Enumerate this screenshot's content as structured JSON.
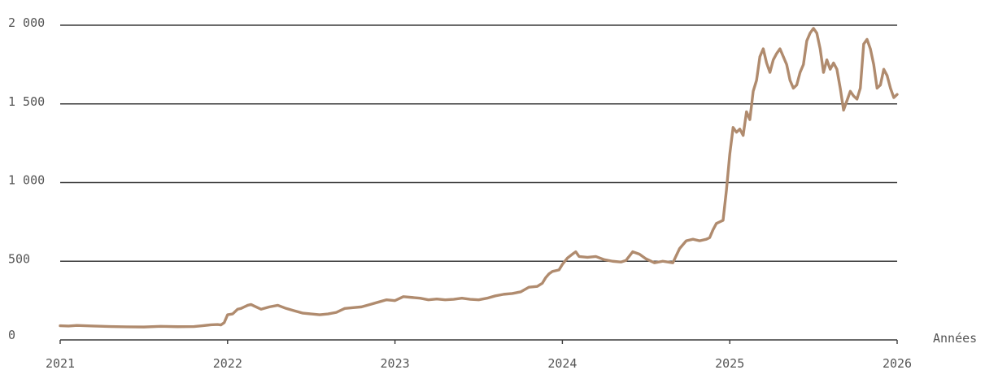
{
  "chart_data": {
    "type": "line",
    "title": "",
    "xlabel": "Années",
    "ylabel": "",
    "xlim": [
      2021,
      2026
    ],
    "ylim": [
      0,
      2000
    ],
    "grid": true,
    "x_ticks": [
      2021,
      2022,
      2023,
      2024,
      2025,
      2026
    ],
    "x_tick_labels": [
      "2021",
      "2022",
      "2023",
      "2024",
      "2025",
      "2026"
    ],
    "y_ticks": [
      0,
      500,
      1000,
      1500,
      2000
    ],
    "y_tick_labels": [
      "0",
      "500",
      "1 000",
      "1 500",
      "2 000"
    ],
    "colors": {
      "series": "#b08b6e",
      "grid": "#3a3a3a",
      "text": "#555555"
    },
    "series": [
      {
        "name": "",
        "x": [
          2021.0,
          2021.05,
          2021.1,
          2021.2,
          2021.3,
          2021.4,
          2021.5,
          2021.6,
          2021.7,
          2021.8,
          2021.85,
          2021.9,
          2021.94,
          2021.96,
          2021.98,
          2022.0,
          2022.03,
          2022.06,
          2022.08,
          2022.1,
          2022.12,
          2022.14,
          2022.16,
          2022.2,
          2022.25,
          2022.3,
          2022.35,
          2022.4,
          2022.45,
          2022.5,
          2022.55,
          2022.6,
          2022.65,
          2022.7,
          2022.75,
          2022.8,
          2022.85,
          2022.9,
          2022.95,
          2023.0,
          2023.05,
          2023.1,
          2023.15,
          2023.2,
          2023.25,
          2023.3,
          2023.35,
          2023.4,
          2023.45,
          2023.5,
          2023.55,
          2023.6,
          2023.65,
          2023.7,
          2023.75,
          2023.8,
          2023.85,
          2023.88,
          2023.9,
          2023.92,
          2023.94,
          2023.96,
          2023.98,
          2024.0,
          2024.03,
          2024.06,
          2024.08,
          2024.1,
          2024.15,
          2024.2,
          2024.25,
          2024.3,
          2024.35,
          2024.38,
          2024.42,
          2024.46,
          2024.5,
          2024.55,
          2024.6,
          2024.63,
          2024.66,
          2024.7,
          2024.74,
          2024.78,
          2024.82,
          2024.86,
          2024.88,
          2024.9,
          2024.92,
          2024.94,
          2024.96,
          2024.98,
          2025.0,
          2025.02,
          2025.04,
          2025.06,
          2025.08,
          2025.1,
          2025.12,
          2025.14,
          2025.16,
          2025.18,
          2025.2,
          2025.22,
          2025.24,
          2025.26,
          2025.28,
          2025.3,
          2025.32,
          2025.34,
          2025.36,
          2025.38,
          2025.4,
          2025.42,
          2025.44,
          2025.46,
          2025.48,
          2025.5,
          2025.52,
          2025.54,
          2025.56,
          2025.58,
          2025.6,
          2025.62,
          2025.64,
          2025.66,
          2025.68,
          2025.7,
          2025.72,
          2025.74,
          2025.76,
          2025.78,
          2025.8,
          2025.82,
          2025.84,
          2025.86,
          2025.88,
          2025.9,
          2025.92,
          2025.94,
          2025.96,
          2025.98,
          2026.0
        ],
        "y": [
          90,
          88,
          92,
          88,
          85,
          83,
          82,
          86,
          84,
          85,
          90,
          96,
          98,
          95,
          110,
          160,
          165,
          195,
          200,
          210,
          220,
          225,
          215,
          195,
          210,
          220,
          200,
          185,
          170,
          165,
          160,
          165,
          175,
          200,
          205,
          210,
          225,
          240,
          255,
          250,
          275,
          270,
          265,
          255,
          260,
          255,
          258,
          265,
          258,
          255,
          265,
          280,
          290,
          295,
          305,
          335,
          340,
          360,
          395,
          420,
          435,
          440,
          445,
          480,
          520,
          545,
          560,
          530,
          525,
          530,
          510,
          500,
          495,
          505,
          560,
          545,
          515,
          490,
          500,
          495,
          490,
          580,
          630,
          640,
          630,
          640,
          650,
          700,
          740,
          750,
          760,
          950,
          1180,
          1350,
          1320,
          1340,
          1300,
          1450,
          1400,
          1580,
          1650,
          1800,
          1850,
          1760,
          1700,
          1780,
          1820,
          1850,
          1800,
          1750,
          1650,
          1600,
          1620,
          1700,
          1750,
          1900,
          1950,
          1980,
          1950,
          1850,
          1700,
          1780,
          1720,
          1760,
          1720,
          1600,
          1460,
          1520,
          1580,
          1550,
          1530,
          1600,
          1880,
          1910,
          1850,
          1750,
          1600,
          1620,
          1720,
          1680,
          1600,
          1540,
          1560
        ]
      }
    ]
  }
}
